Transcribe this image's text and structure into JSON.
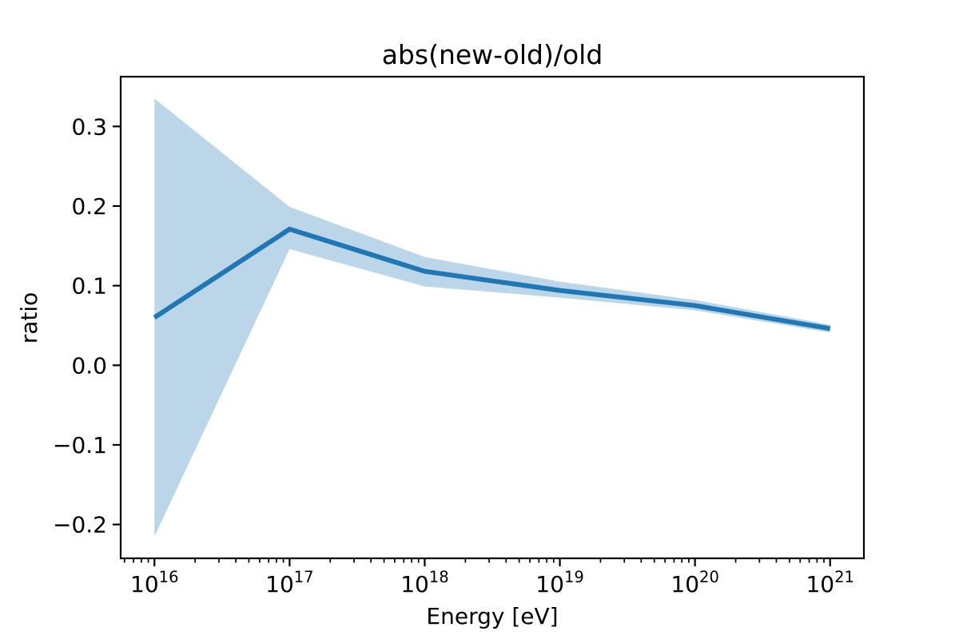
{
  "chart_data": {
    "type": "line",
    "title": "abs(new-old)/old",
    "xlabel": "Energy [eV]",
    "ylabel": "ratio",
    "x_scale": "log",
    "x": [
      1e+16,
      1e+17,
      1e+18,
      1e+19,
      1e+20,
      1e+21
    ],
    "series": [
      {
        "name": "ratio",
        "values": [
          0.06,
          0.171,
          0.118,
          0.094,
          0.075,
          0.046
        ]
      }
    ],
    "band": {
      "name": "uncertainty-band",
      "upper": [
        0.335,
        0.199,
        0.136,
        0.105,
        0.082,
        0.051
      ],
      "lower": [
        -0.215,
        0.146,
        0.099,
        0.085,
        0.069,
        0.041
      ]
    },
    "x_tick_base": "10",
    "x_tick_exponents": [
      16,
      17,
      18,
      19,
      20,
      21
    ],
    "y_ticks": [
      {
        "value": 0.3,
        "label": "0.3"
      },
      {
        "value": 0.2,
        "label": "0.2"
      },
      {
        "value": 0.1,
        "label": "0.1"
      },
      {
        "value": 0.0,
        "label": "0.0"
      },
      {
        "value": -0.1,
        "label": "−0.1"
      },
      {
        "value": -0.2,
        "label": "−0.2"
      }
    ],
    "xlim_log10": [
      15.75,
      21.25
    ],
    "ylim": [
      -0.2425,
      0.3625
    ],
    "grid": false,
    "legend_position": "none",
    "colors": {
      "line": "#1f77b4",
      "band": "rgba(31,119,180,0.3)",
      "axis": "#000000",
      "background": "#ffffff"
    }
  }
}
